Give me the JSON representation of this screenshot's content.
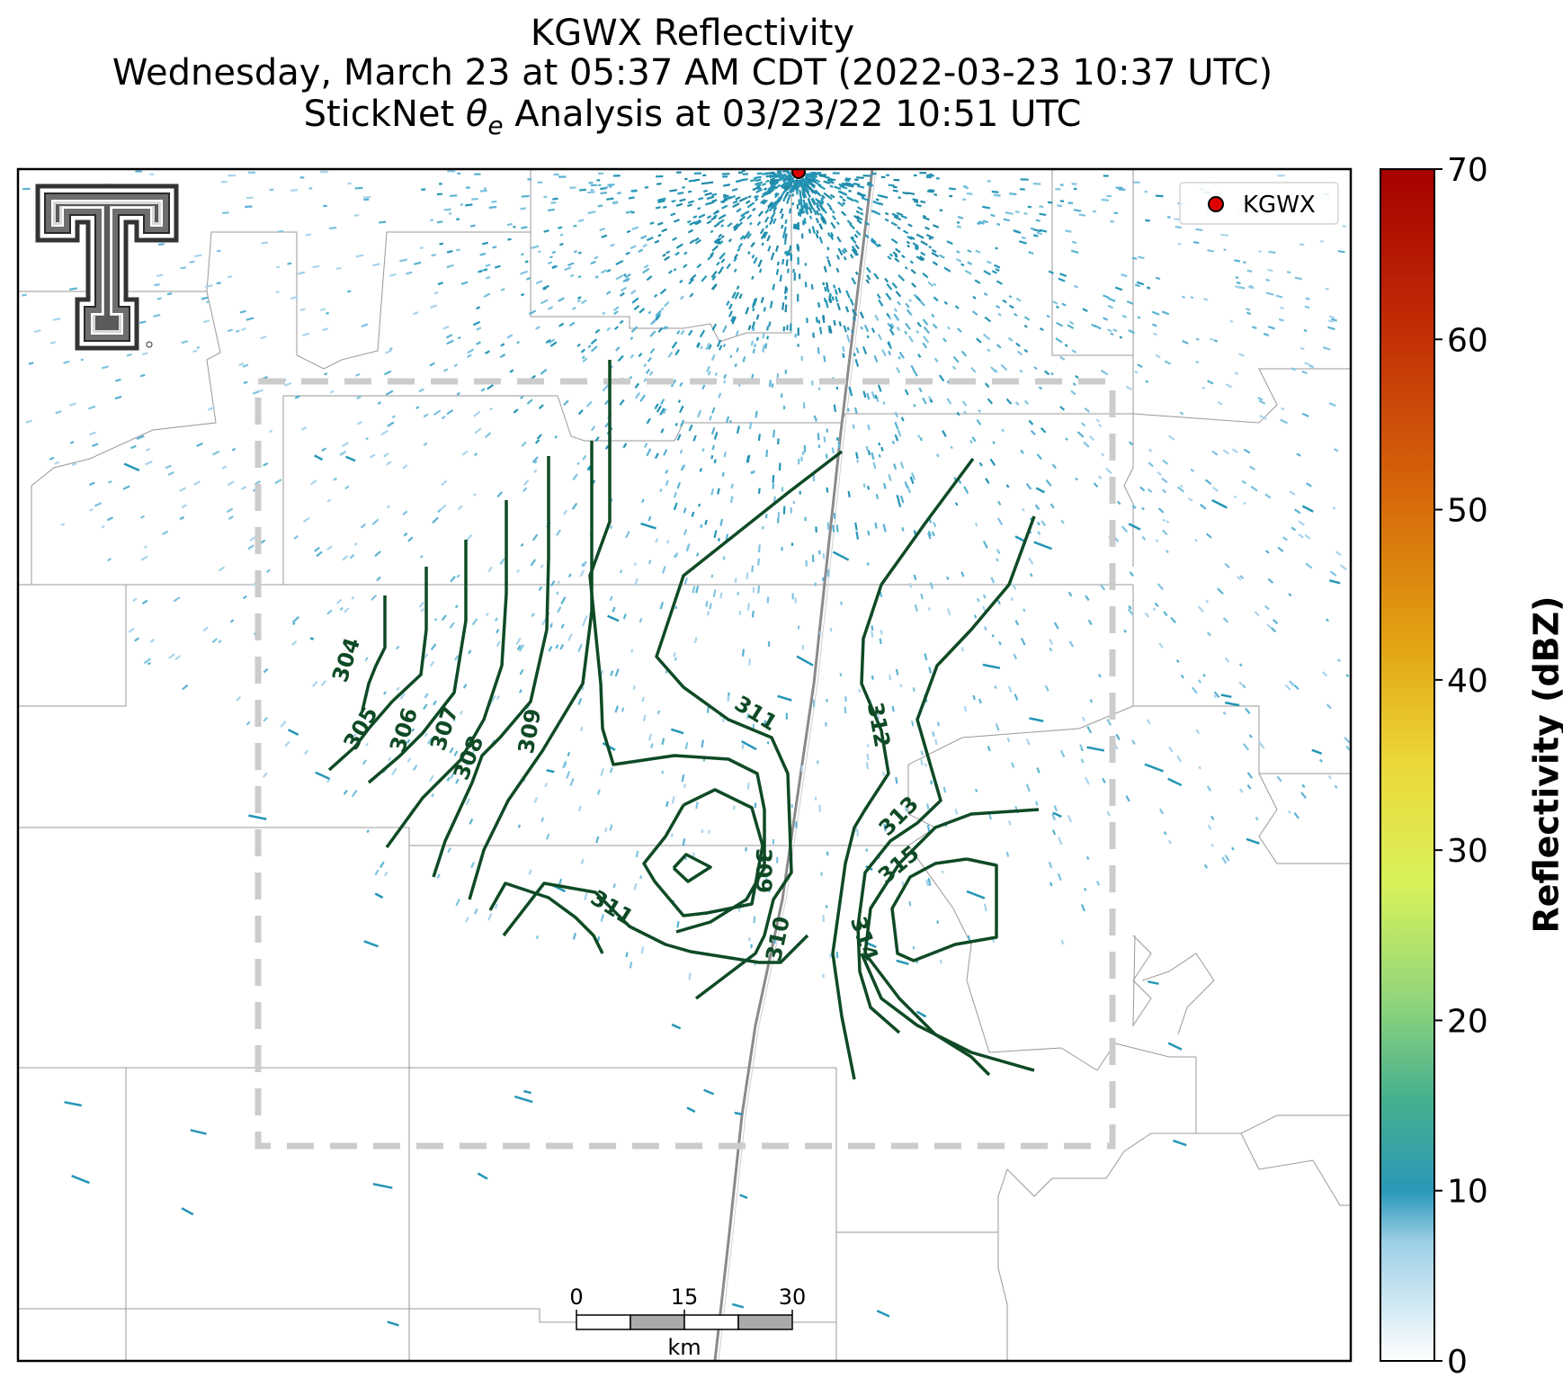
{
  "header": {
    "title_line1": "KGWX Reflectivity",
    "title_line2": "Wednesday, March 23 at 05:37 AM CDT (2022-03-23 10:37 UTC)",
    "title_line3_prefix": "StickNet ",
    "title_line3_symbol": "θ",
    "title_line3_subscript": "e",
    "title_line3_suffix": " Analysis at 03/23/22 10:51 UTC"
  },
  "legend": {
    "label": "KGWX",
    "marker_color": "#e00000"
  },
  "colorbar": {
    "label": "Reflectivity (dBZ)",
    "min": 0,
    "max": 70,
    "ticks": [
      "0",
      "10",
      "20",
      "30",
      "40",
      "50",
      "60",
      "70"
    ]
  },
  "scalebar": {
    "labels": [
      "0",
      "15",
      "30"
    ],
    "unit": "km"
  },
  "contours": {
    "color": "#0e4a25",
    "labels": [
      "304",
      "305",
      "306",
      "307",
      "308",
      "309",
      "311",
      "312",
      "313",
      "315",
      "309",
      "310",
      "311",
      "314"
    ]
  },
  "colors": {
    "analysis_box": "#cccccc",
    "county_lines": "#999999",
    "highway": "#888888",
    "reflectivity_low": "#a9d4ec",
    "reflectivity_mid": "#2596b6"
  }
}
